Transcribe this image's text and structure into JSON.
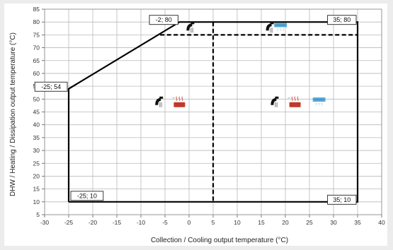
{
  "chart_data": {
    "type": "line",
    "xlabel": "Collection / Cooling output temperature (°C)",
    "ylabel": "DHW / Heating / Dissipation output temperature (°C)",
    "xlim": [
      -30,
      40
    ],
    "ylim": [
      5,
      85
    ],
    "x_ticks": [
      -30,
      -25,
      -20,
      -15,
      -10,
      -5,
      0,
      5,
      10,
      15,
      20,
      25,
      30,
      35,
      40
    ],
    "y_ticks": [
      5,
      10,
      15,
      20,
      25,
      30,
      35,
      40,
      45,
      50,
      55,
      60,
      65,
      70,
      75,
      80,
      85
    ],
    "grid": true,
    "series": [
      {
        "style": "solid",
        "points": [
          [
            -25,
            10
          ],
          [
            -25,
            54
          ],
          [
            -2,
            80
          ],
          [
            35,
            80
          ],
          [
            35,
            10
          ],
          [
            -25,
            10
          ]
        ]
      },
      {
        "style": "dashed",
        "points": [
          [
            -6,
            75
          ],
          [
            35,
            75
          ]
        ]
      },
      {
        "style": "dashed",
        "points": [
          [
            5,
            80
          ],
          [
            5,
            10
          ]
        ]
      }
    ],
    "annotations": [
      {
        "text": "-2; 80",
        "x": -2,
        "y": 80,
        "anchor": "left"
      },
      {
        "text": "35; 80",
        "x": 35,
        "y": 80,
        "anchor": "left"
      },
      {
        "text": "-25; 54",
        "x": -25,
        "y": 54,
        "anchor": "left"
      },
      {
        "text": "-25; 10",
        "x": -25,
        "y": 10,
        "anchor": "right"
      },
      {
        "text": "35; 10",
        "x": 35,
        "y": 10,
        "anchor": "left"
      }
    ],
    "icons": [
      {
        "name": "faucet-icon",
        "x": 0.5,
        "y": 77.5
      },
      {
        "name": "faucet-icon",
        "x": 17,
        "y": 77.5
      },
      {
        "name": "cooling-unit-icon",
        "x": 19,
        "y": 78
      },
      {
        "name": "faucet-icon",
        "x": -6,
        "y": 48.5
      },
      {
        "name": "radiator-icon",
        "x": -2,
        "y": 48.5
      },
      {
        "name": "faucet-icon",
        "x": 18,
        "y": 48.5
      },
      {
        "name": "radiator-icon",
        "x": 22,
        "y": 48.5
      },
      {
        "name": "cooling-unit-icon",
        "x": 27,
        "y": 49
      }
    ],
    "colors": {
      "line": "#000000",
      "grid": "#b9b9b9",
      "radiator": "#c0392b",
      "cooling": "#5aa9d6"
    }
  }
}
